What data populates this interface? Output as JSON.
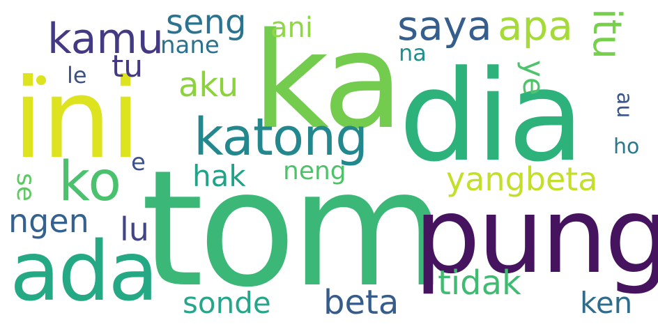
{
  "words": [
    {
      "text": "tom",
      "color": "#3bb877"
    },
    {
      "text": "ka",
      "color": "#74cc4f"
    },
    {
      "text": "dia",
      "color": "#2db27c"
    },
    {
      "text": "ini",
      "color": "#dde31f"
    },
    {
      "text": "pung",
      "color": "#46145f"
    },
    {
      "text": "ada",
      "color": "#25a985"
    },
    {
      "text": "katong",
      "color": "#23888e"
    },
    {
      "text": "ko",
      "color": "#4ac16c"
    },
    {
      "text": "kamu",
      "color": "#433a83"
    },
    {
      "text": "saya",
      "color": "#355e8d"
    },
    {
      "text": "apa",
      "color": "#a5db36"
    },
    {
      "text": "seng",
      "color": "#2b738e"
    },
    {
      "text": "itu",
      "color": "#76d04c"
    },
    {
      "text": "aku",
      "color": "#8cd23c"
    },
    {
      "text": "yangbeta",
      "color": "#c3df2a"
    },
    {
      "text": "tidak",
      "color": "#3fbb72"
    },
    {
      "text": "beta",
      "color": "#365c8d"
    },
    {
      "text": "sonde",
      "color": "#25a58a"
    },
    {
      "text": "ken",
      "color": "#2e6c8e"
    },
    {
      "text": "ngen",
      "color": "#34618d"
    },
    {
      "text": "lu",
      "color": "#414487"
    },
    {
      "text": "tu",
      "color": "#443a83"
    },
    {
      "text": "hak",
      "color": "#20a386"
    },
    {
      "text": "neng",
      "color": "#4dc26a"
    },
    {
      "text": "ani",
      "color": "#8fd744"
    },
    {
      "text": "nane",
      "color": "#2c728e"
    },
    {
      "text": "na",
      "color": "#21908d"
    },
    {
      "text": "ye",
      "color": "#4ec36b"
    },
    {
      "text": "le",
      "color": "#3b528b"
    },
    {
      "text": "e",
      "color": "#3b528b"
    },
    {
      "text": "se",
      "color": "#5ec962"
    },
    {
      "text": "au",
      "color": "#3a548c"
    },
    {
      "text": "ho",
      "color": "#29788e"
    },
    {
      "text": "dot",
      "color": "#dde31f"
    }
  ]
}
